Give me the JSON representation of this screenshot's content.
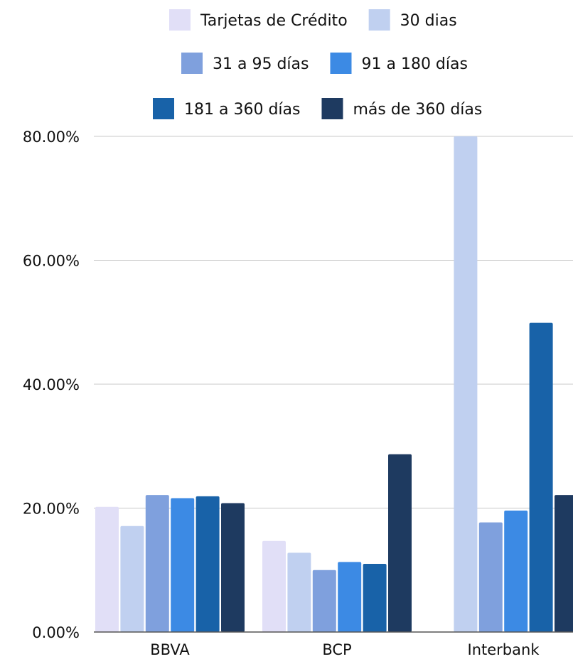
{
  "chart_data": {
    "type": "bar",
    "title": "",
    "xlabel": "",
    "ylabel": "",
    "categories": [
      "BBVA",
      "BCP",
      "Interbank"
    ],
    "ylim": [
      0,
      80
    ],
    "yticks": [
      "0.00%",
      "20.00%",
      "40.00%",
      "60.00%",
      "80.00%"
    ],
    "grid": true,
    "legend_position": "top-center",
    "series": [
      {
        "name": "Tarjetas de Crédito",
        "color": "#e1dff7",
        "values": [
          20.2,
          14.7,
          0
        ]
      },
      {
        "name": "30 dias",
        "color": "#c0d0f0",
        "values": [
          17.1,
          12.8,
          80
        ]
      },
      {
        "name": "31 a 95 días",
        "color": "#7fa0dd",
        "values": [
          22.1,
          10.0,
          17.7
        ]
      },
      {
        "name": "91 a 180 días",
        "color": "#3c8ae4",
        "values": [
          21.6,
          11.3,
          19.6
        ]
      },
      {
        "name": "181 a 360 días",
        "color": "#1862a8",
        "values": [
          21.9,
          11.0,
          49.9
        ]
      },
      {
        "name": "más de 360 días",
        "color": "#1e3a60",
        "values": [
          20.8,
          28.7,
          22.1
        ]
      }
    ]
  }
}
